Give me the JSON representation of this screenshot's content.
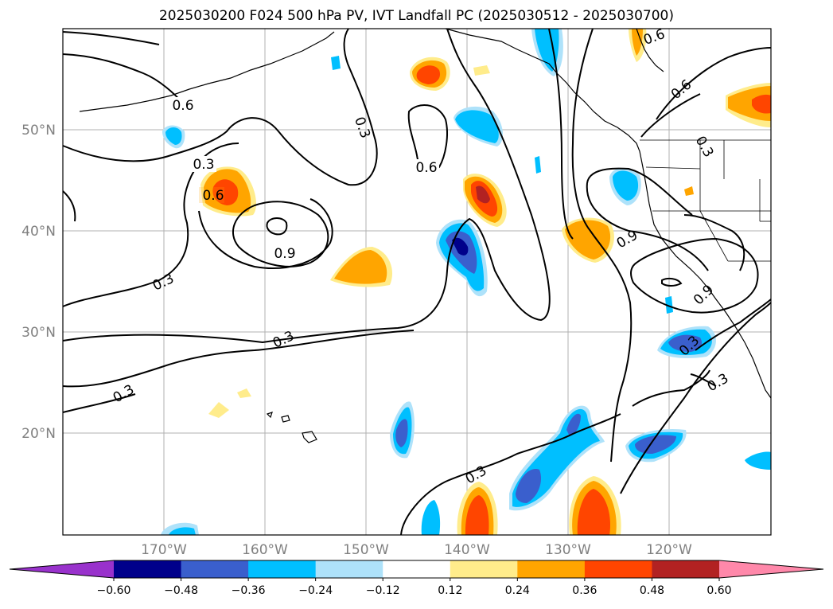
{
  "title": "2025030200 F024 500 hPa PV, IVT Landfall PC (2025030512 - 2025030700)",
  "map": {
    "lat_labels": [
      "50°N",
      "40°N",
      "30°N",
      "20°N"
    ],
    "lon_labels": [
      "170°W",
      "160°W",
      "150°W",
      "140°W",
      "130°W",
      "120°W"
    ],
    "contour_labels": [
      "0.6",
      "0.3",
      "0.6",
      "0.6",
      "0.3",
      "0.6",
      "0.9",
      "0.3",
      "0.3",
      "0.3",
      "0.3",
      "0.9",
      "0.9",
      "0.3",
      "0.3",
      "0.6",
      "0.3"
    ]
  },
  "colorbar": {
    "ticks": [
      "−0.60",
      "−0.48",
      "−0.36",
      "−0.24",
      "−0.12",
      "0.12",
      "0.24",
      "0.36",
      "0.48",
      "0.60"
    ],
    "colors": [
      "#9932cc",
      "#00008b",
      "#3a5fcd",
      "#00bfff",
      "#aee2fa",
      "#ffffff",
      "#ffec8b",
      "#ffa500",
      "#ff4500",
      "#b22222",
      "#ff88aa"
    ]
  },
  "colors": {
    "grid": "#b0b0b0",
    "contour": "#000000",
    "label": "#808080"
  }
}
